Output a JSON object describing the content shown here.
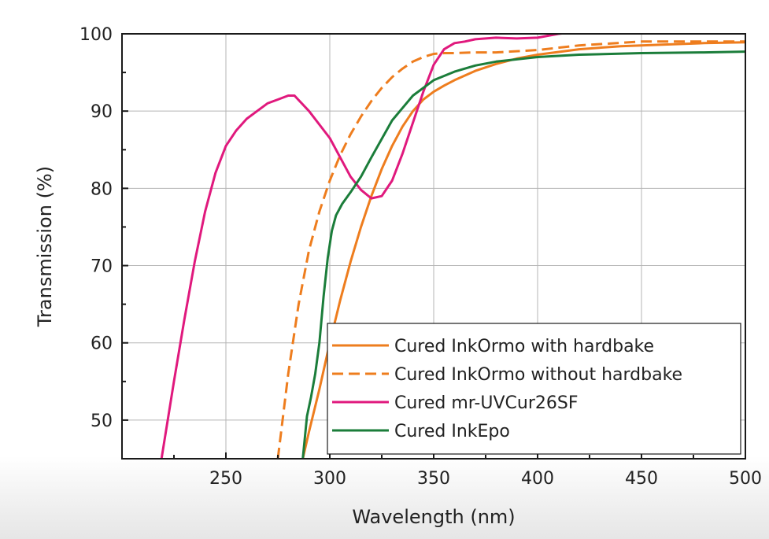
{
  "chart_data": {
    "type": "line",
    "xlabel": "Wavelength (nm)",
    "ylabel": "Transmission (%)",
    "xlim": [
      200,
      500
    ],
    "ylim": [
      45,
      100
    ],
    "xticks": [
      250,
      300,
      350,
      400,
      450,
      500
    ],
    "yticks": [
      50,
      60,
      70,
      80,
      90,
      100
    ],
    "grid": true,
    "legend_position": "lower-right",
    "series": [
      {
        "name": "Cured InkOrmo with hardbake",
        "color": "#ee7d1e",
        "dash": "solid",
        "x": [
          287,
          290,
          295,
          300,
          305,
          310,
          315,
          320,
          325,
          330,
          335,
          340,
          345,
          350,
          355,
          360,
          370,
          380,
          390,
          400,
          420,
          440,
          460,
          480,
          500
        ],
        "y": [
          45,
          48.5,
          54,
          60,
          65.5,
          70.5,
          75,
          79,
          82.5,
          85.5,
          88,
          90,
          91.5,
          92.5,
          93.3,
          94,
          95.2,
          96.1,
          96.8,
          97.3,
          98,
          98.4,
          98.6,
          98.8,
          98.9
        ]
      },
      {
        "name": "Cured InkOrmo without hardbake",
        "color": "#ee7d1e",
        "dash": "dashed",
        "x": [
          275,
          280,
          285,
          290,
          295,
          300,
          305,
          310,
          315,
          320,
          325,
          330,
          335,
          340,
          345,
          350,
          355,
          360,
          370,
          380,
          400,
          420,
          450,
          480,
          500
        ],
        "y": [
          45,
          56,
          65,
          72,
          77,
          81,
          84.3,
          87,
          89.3,
          91.3,
          93,
          94.4,
          95.5,
          96.4,
          97,
          97.4,
          97.5,
          97.5,
          97.6,
          97.6,
          97.9,
          98.5,
          99,
          99,
          99
        ]
      },
      {
        "name": "Cured mr-UVCur26SF",
        "color": "#e0197d",
        "dash": "solid",
        "x": [
          219,
          225,
          230,
          235,
          240,
          245,
          250,
          255,
          260,
          265,
          270,
          275,
          280,
          283,
          290,
          300,
          305,
          310,
          315,
          320,
          325,
          330,
          335,
          340,
          345,
          350,
          355,
          360,
          365,
          370,
          380,
          390,
          400,
          410,
          420
        ],
        "y": [
          45,
          55,
          63,
          70.5,
          77,
          82,
          85.5,
          87.5,
          89,
          90,
          91,
          91.5,
          92,
          92,
          90,
          86.5,
          84,
          81.5,
          79.8,
          78.7,
          79,
          81,
          84.5,
          88.5,
          92.5,
          96,
          98,
          98.8,
          99,
          99.3,
          99.5,
          99.4,
          99.5,
          100,
          100.3
        ]
      },
      {
        "name": "Cured InkEpo",
        "color": "#1b7d3a",
        "dash": "solid",
        "x": [
          287,
          289,
          291,
          293,
          295,
          297,
          299,
          301,
          303,
          306,
          310,
          315,
          320,
          330,
          340,
          350,
          360,
          370,
          380,
          400,
          420,
          450,
          480,
          500
        ],
        "y": [
          45,
          50.5,
          53,
          56,
          60,
          66,
          71,
          74.5,
          76.5,
          78,
          79.5,
          81.5,
          84,
          88.8,
          92,
          94,
          95.1,
          95.9,
          96.4,
          97,
          97.3,
          97.5,
          97.6,
          97.7
        ]
      }
    ]
  }
}
